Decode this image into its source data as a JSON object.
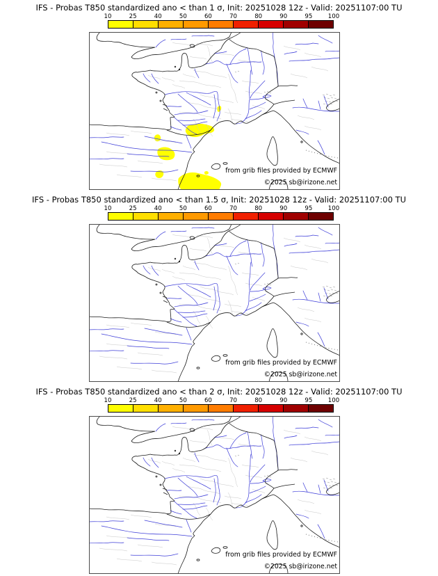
{
  "product": {
    "model": "IFS",
    "variable": "T850",
    "init": "20251028 12z",
    "valid": "20251107:00 TU"
  },
  "panels": [
    {
      "title": "IFS - Probas T850  standardized ano < than 1 σ, Init: 20251028 12z - Valid: 20251107:00 TU",
      "threshold_sigma": "1",
      "has_anomaly_overlay": true
    },
    {
      "title": "IFS - Probas T850  standardized ano < than 1.5 σ, Init: 20251028 12z - Valid: 20251107:00 TU",
      "threshold_sigma": "1.5",
      "has_anomaly_overlay": false
    },
    {
      "title": "IFS - Probas T850  standardized ano < than 2 σ, Init: 20251028 12z - Valid: 20251107:00 TU",
      "threshold_sigma": "2",
      "has_anomaly_overlay": false
    }
  ],
  "colorbar": {
    "ticks": [
      "10",
      "25",
      "40",
      "50",
      "60",
      "70",
      "80",
      "90",
      "95",
      "100"
    ],
    "colors": [
      "#fefe00",
      "#ffdf00",
      "#ffb000",
      "#ff9a00",
      "#ff7c00",
      "#f02000",
      "#d60000",
      "#a00000",
      "#6e0000"
    ]
  },
  "map": {
    "attribution_line1": "from grib files provided by ECMWF",
    "attribution_line2": "©2025 sb@irizone.net",
    "coast_color": "#1a1a1a",
    "river_color": "#3c3cd8",
    "admin_color": "#c6c6c6",
    "anomaly_color": "#ffff00",
    "anomaly_patches": [
      "M 186,107 C 189,105 191,107 190,111 C 189,114 187,116 185,114 C 184,111 184,108 186,107 Z",
      "M 139,140 C 140,135 146,132 152,133 C 158,131 166,132 172,134 C 177,135 181,138 180,142 C 177,146 171,145 165,147 C 159,151 152,152 146,150 C 141,148 138,144 139,140 Z",
      "M 95,149 C 98,146 102,147 103,151 C 104,155 101,158 97,157 C 94,156 93,152 95,149 Z",
      "M 100,168 C 106,164 114,165 119,169 C 124,172 125,178 121,182 C 116,185 108,185 103,182 C 98,178 97,171 100,168 Z",
      "M 96,202 C 99,198 105,198 107,202 C 108,206 105,210 101,210 C 97,210 94,206 96,202 Z",
      "M 166,201 C 169,199 172,200 172,203 C 171,205 167,206 166,203 Z",
      "M 129,210 C 136,203 147,200 157,203 C 165,205 173,206 181,210 C 187,213 191,216 190,220 C 189,223 188,225 187,227 L 133,227 C 129,222 127,215 129,210 Z"
    ]
  }
}
